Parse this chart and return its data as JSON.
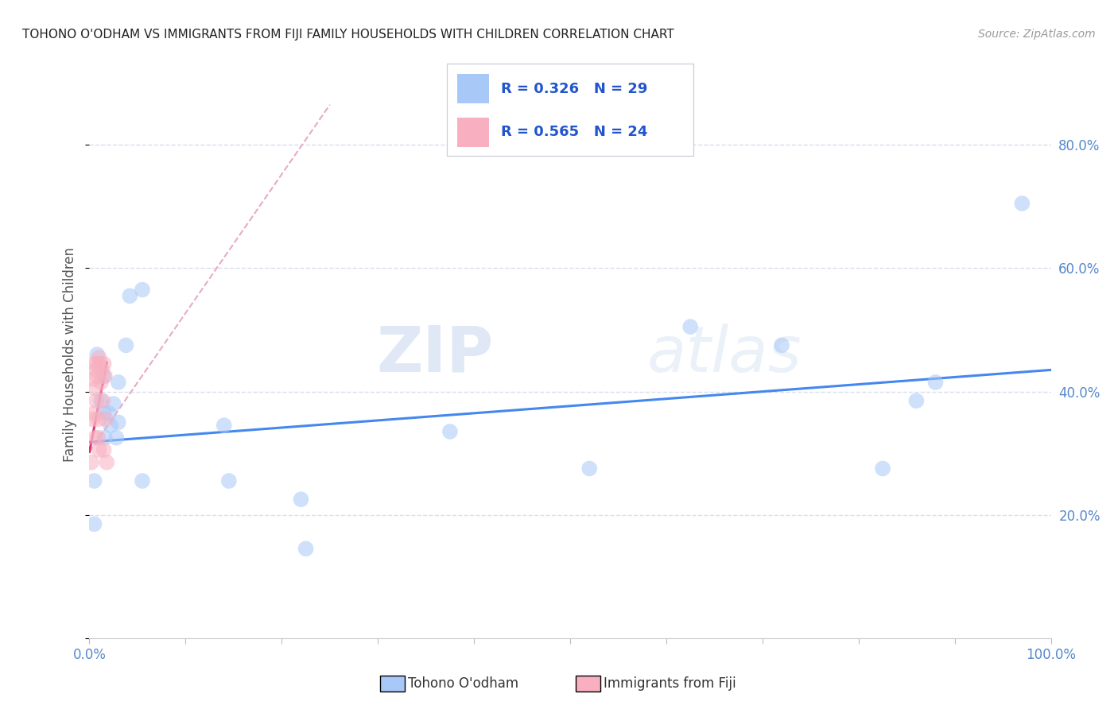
{
  "title": "TOHONO O'ODHAM VS IMMIGRANTS FROM FIJI FAMILY HOUSEHOLDS WITH CHILDREN CORRELATION CHART",
  "source": "Source: ZipAtlas.com",
  "ylabel": "Family Households with Children",
  "xlim": [
    0,
    1.0
  ],
  "ylim": [
    0,
    0.92
  ],
  "right_yticks": [
    0.2,
    0.4,
    0.6,
    0.8
  ],
  "right_yticklabels": [
    "20.0%",
    "40.0%",
    "60.0%",
    "80.0%"
  ],
  "background_color": "#ffffff",
  "grid_color": "#d8ddf0",
  "tohono_color": "#a8c8f8",
  "fiji_color": "#f8b0c0",
  "trendline_tohono_color": "#4488ee",
  "trendline_fiji_color": "#dd3377",
  "trendline_fiji_dash_color": "#e8aac8",
  "tohono_x": [
    0.005,
    0.008,
    0.012,
    0.015,
    0.015,
    0.016,
    0.02,
    0.022,
    0.025,
    0.028,
    0.03,
    0.03,
    0.038,
    0.042,
    0.005,
    0.055,
    0.055,
    0.14,
    0.145,
    0.22,
    0.225,
    0.375,
    0.52,
    0.625,
    0.72,
    0.825,
    0.86,
    0.88,
    0.97
  ],
  "tohono_y": [
    0.185,
    0.46,
    0.385,
    0.425,
    0.365,
    0.325,
    0.365,
    0.345,
    0.38,
    0.325,
    0.35,
    0.415,
    0.475,
    0.555,
    0.255,
    0.565,
    0.255,
    0.345,
    0.255,
    0.225,
    0.145,
    0.335,
    0.275,
    0.505,
    0.475,
    0.275,
    0.385,
    0.415,
    0.705
  ],
  "fiji_x": [
    0.002,
    0.003,
    0.004,
    0.005,
    0.005,
    0.006,
    0.006,
    0.007,
    0.007,
    0.008,
    0.008,
    0.009,
    0.009,
    0.01,
    0.01,
    0.011,
    0.012,
    0.013,
    0.014,
    0.015,
    0.015,
    0.016,
    0.017,
    0.018
  ],
  "fiji_y": [
    0.285,
    0.355,
    0.42,
    0.445,
    0.365,
    0.405,
    0.325,
    0.435,
    0.385,
    0.425,
    0.445,
    0.355,
    0.325,
    0.455,
    0.305,
    0.445,
    0.415,
    0.435,
    0.385,
    0.445,
    0.305,
    0.425,
    0.355,
    0.285
  ],
  "watermark_zip": "ZIP",
  "watermark_atlas": "atlas",
  "marker_size": 200,
  "marker_alpha": 0.55,
  "trendline_tohono_start_x": 0.0,
  "trendline_tohono_start_y": 0.318,
  "trendline_tohono_end_x": 1.0,
  "trendline_tohono_end_y": 0.435,
  "trendline_fiji_solid_start_x": 0.0,
  "trendline_fiji_solid_start_y": 0.302,
  "trendline_fiji_solid_end_x": 0.018,
  "trendline_fiji_solid_end_y": 0.447,
  "trendline_fiji_dash_start_x": 0.0,
  "trendline_fiji_dash_start_y": 0.302,
  "trendline_fiji_dash_end_x": 0.25,
  "trendline_fiji_dash_end_y": 0.865,
  "legend_r1": "R = 0.326",
  "legend_n1": "N = 29",
  "legend_r2": "R = 0.565",
  "legend_n2": "N = 24",
  "bottom_legend1": "Tohono O'odham",
  "bottom_legend2": "Immigrants from Fiji"
}
